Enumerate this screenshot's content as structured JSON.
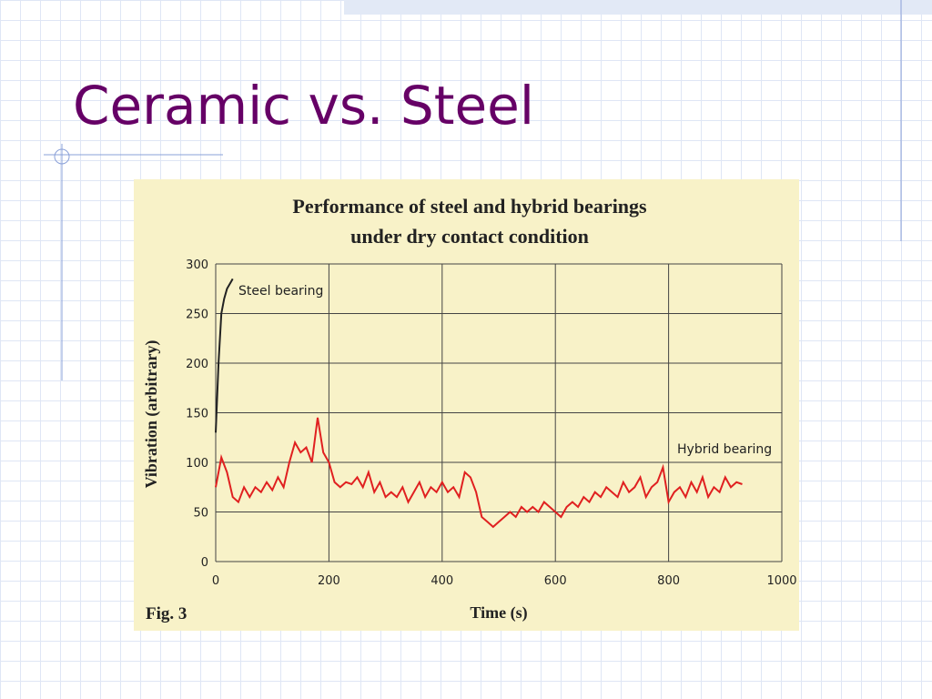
{
  "slide_title": "Ceramic vs. Steel",
  "chart_data": {
    "type": "line",
    "title": [
      "Performance of steel and hybrid bearings",
      "under dry contact condition"
    ],
    "x_label": "Time (s)",
    "y_label": "Vibration (arbitrary)",
    "figure_label": "Fig. 3",
    "xlim": [
      0,
      1000
    ],
    "xticks": [
      0,
      200,
      400,
      600,
      800,
      1000
    ],
    "ylim": [
      0,
      300
    ],
    "yticks": [
      0,
      50,
      100,
      150,
      200,
      250,
      300
    ],
    "grid": true,
    "series": [
      {
        "name": "Steel bearing",
        "color": "#222222",
        "x": [
          0,
          5,
          10,
          15,
          20,
          25,
          30
        ],
        "values": [
          130,
          200,
          250,
          265,
          275,
          280,
          285
        ]
      },
      {
        "name": "Hybrid bearing",
        "color": "#e02020",
        "x": [
          0,
          10,
          20,
          30,
          40,
          50,
          60,
          70,
          80,
          90,
          100,
          110,
          120,
          130,
          140,
          150,
          160,
          170,
          180,
          190,
          200,
          210,
          220,
          230,
          240,
          250,
          260,
          270,
          280,
          290,
          300,
          310,
          320,
          330,
          340,
          350,
          360,
          370,
          380,
          390,
          400,
          410,
          420,
          430,
          440,
          450,
          460,
          470,
          480,
          490,
          500,
          510,
          520,
          530,
          540,
          550,
          560,
          570,
          580,
          590,
          600,
          610,
          620,
          630,
          640,
          650,
          660,
          670,
          680,
          690,
          700,
          710,
          720,
          730,
          740,
          750,
          760,
          770,
          780,
          790,
          800,
          810,
          820,
          830,
          840,
          850,
          860,
          870,
          880,
          890,
          900,
          910,
          920,
          930
        ],
        "values": [
          75,
          105,
          90,
          65,
          60,
          75,
          65,
          75,
          70,
          80,
          72,
          85,
          75,
          100,
          120,
          110,
          115,
          100,
          145,
          110,
          100,
          80,
          75,
          80,
          78,
          85,
          75,
          90,
          70,
          80,
          65,
          70,
          65,
          75,
          60,
          70,
          80,
          65,
          75,
          70,
          80,
          70,
          75,
          65,
          90,
          85,
          70,
          45,
          40,
          35,
          40,
          45,
          50,
          45,
          55,
          50,
          55,
          50,
          60,
          55,
          50,
          45,
          55,
          60,
          55,
          65,
          60,
          70,
          65,
          75,
          70,
          65,
          80,
          70,
          75,
          85,
          65,
          75,
          80,
          95,
          60,
          70,
          75,
          65,
          80,
          70,
          85,
          65,
          75,
          70,
          85,
          75,
          80,
          78
        ]
      }
    ]
  }
}
